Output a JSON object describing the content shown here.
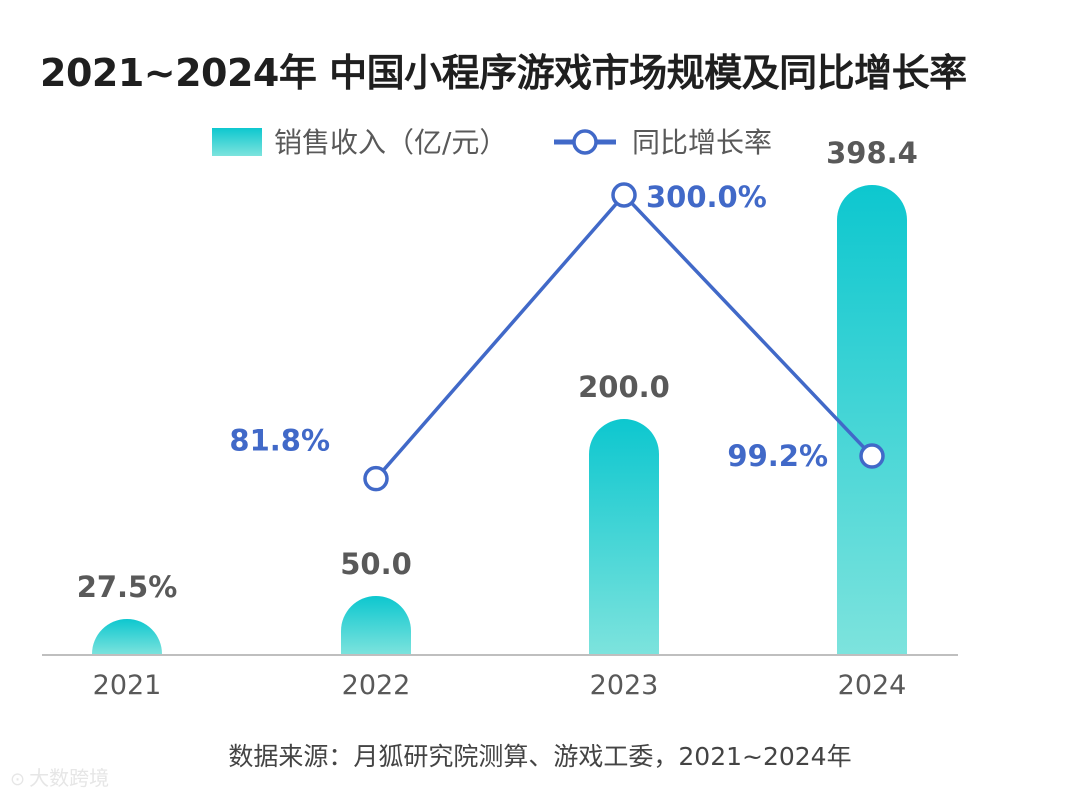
{
  "title": "2021~2024年 中国小程序游戏市场规模及同比增长率",
  "source": "数据来源：月狐研究院测算、游戏工委，2021~2024年",
  "watermark": "大数跨境",
  "colors": {
    "bar_top": "#0dc7cf",
    "bar_bottom": "#7de3dd",
    "line": "#4169c8",
    "axis": "#bfbfbf"
  },
  "chart_data": {
    "type": "bar+line",
    "categories": [
      "2021",
      "2022",
      "2023",
      "2024"
    ],
    "series": [
      {
        "name": "销售收入（亿/元）",
        "type": "bar",
        "values": [
          27.5,
          50.0,
          200.0,
          398.4
        ],
        "labels": [
          "27.5%",
          "50.0",
          "200.0",
          "398.4"
        ]
      },
      {
        "name": "同比增长率",
        "type": "line",
        "values": [
          null,
          81.8,
          300.0,
          99.2
        ],
        "labels": [
          "",
          "81.8%",
          "300.0%",
          "99.2%"
        ]
      }
    ],
    "legend": "top-center",
    "grid": false
  }
}
